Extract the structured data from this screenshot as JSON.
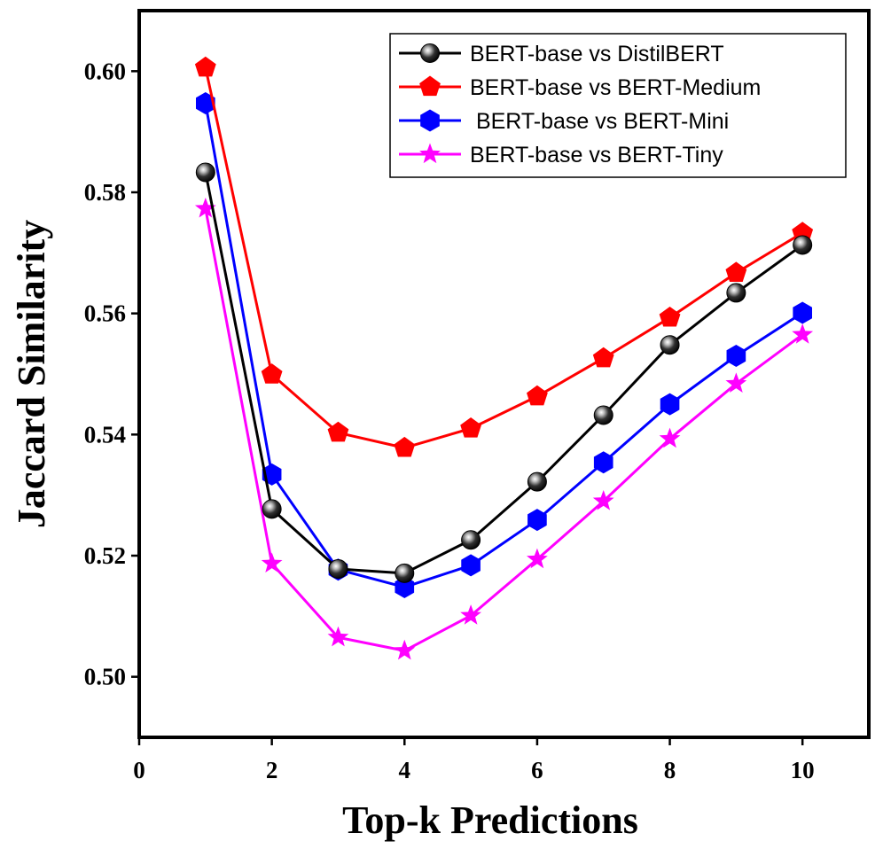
{
  "chart_data": {
    "type": "line",
    "title": "",
    "xlabel": "Top-k Predictions",
    "ylabel": "Jaccard Similarity",
    "xlim": [
      0,
      11
    ],
    "ylim": [
      0.49,
      0.61
    ],
    "xticks": [
      0,
      2,
      4,
      6,
      8,
      10
    ],
    "yticks": [
      0.5,
      0.52,
      0.54,
      0.56,
      0.58,
      0.6
    ],
    "xtick_labels": [
      "0",
      "2",
      "4",
      "6",
      "8",
      "10"
    ],
    "ytick_labels": [
      "0.50",
      "0.52",
      "0.54",
      "0.56",
      "0.58",
      "0.60"
    ],
    "grid": false,
    "legend_position": "top-right",
    "x": [
      1,
      2,
      3,
      4,
      5,
      6,
      7,
      8,
      9,
      10
    ],
    "series": [
      {
        "name": "BERT-base vs DistilBERT",
        "color": "#000000",
        "marker": "sphere",
        "values": [
          0.5833,
          0.5277,
          0.5178,
          0.5171,
          0.5226,
          0.5322,
          0.5432,
          0.5548,
          0.5634,
          0.5713
        ]
      },
      {
        "name": "BERT-base vs BERT-Medium",
        "color": "#ff0000",
        "marker": "pentagon",
        "values": [
          0.6006,
          0.5499,
          0.5403,
          0.5378,
          0.541,
          0.5463,
          0.5526,
          0.5593,
          0.5667,
          0.5733
        ]
      },
      {
        "name": " BERT-base vs BERT-Mini",
        "color": "#0000ff",
        "marker": "hexagon",
        "values": [
          0.5947,
          0.5334,
          0.5177,
          0.5148,
          0.5184,
          0.5259,
          0.5354,
          0.545,
          0.553,
          0.5601
        ]
      },
      {
        "name": "BERT-base vs BERT-Tiny",
        "color": "#ff00ff",
        "marker": "star",
        "values": [
          0.5773,
          0.5187,
          0.5065,
          0.5043,
          0.5101,
          0.5194,
          0.529,
          0.5393,
          0.5484,
          0.5565
        ]
      }
    ]
  }
}
